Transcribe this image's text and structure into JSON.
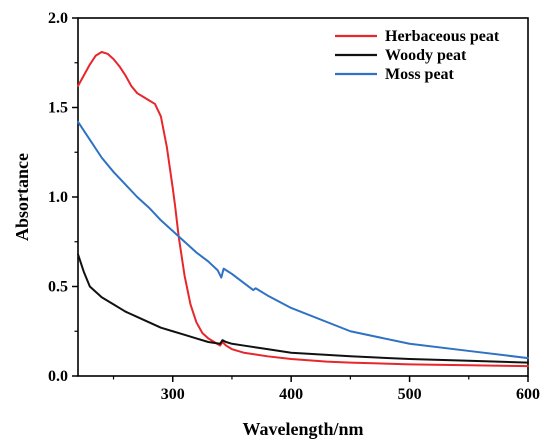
{
  "chart_data": {
    "type": "line",
    "title": "",
    "xlabel": "Wavelength/nm",
    "ylabel": "Absortance",
    "xlim": [
      220,
      600
    ],
    "ylim": [
      0,
      2.0
    ],
    "xticks": [
      "300",
      "400",
      "500",
      "600"
    ],
    "xtick_values": [
      300,
      400,
      500,
      600
    ],
    "yticks": [
      "0.0",
      "0.5",
      "1.0",
      "1.5",
      "2.0"
    ],
    "ytick_values": [
      0.0,
      0.5,
      1.0,
      1.5,
      2.0
    ],
    "grid": false,
    "legend_position": "top-right",
    "series": [
      {
        "name": "Herbaceous peat",
        "color": "#e8262b",
        "x": [
          220,
          225,
          230,
          235,
          240,
          245,
          250,
          255,
          260,
          265,
          270,
          275,
          280,
          285,
          290,
          295,
          300,
          302,
          305,
          310,
          315,
          320,
          325,
          330,
          335,
          340,
          342,
          345,
          350,
          360,
          370,
          380,
          400,
          430,
          450,
          500,
          550,
          600
        ],
        "y": [
          1.62,
          1.68,
          1.74,
          1.79,
          1.81,
          1.8,
          1.77,
          1.73,
          1.68,
          1.62,
          1.58,
          1.56,
          1.54,
          1.52,
          1.45,
          1.28,
          1.05,
          0.95,
          0.78,
          0.56,
          0.4,
          0.3,
          0.24,
          0.21,
          0.19,
          0.17,
          0.19,
          0.17,
          0.15,
          0.13,
          0.12,
          0.11,
          0.095,
          0.08,
          0.075,
          0.065,
          0.06,
          0.055
        ]
      },
      {
        "name": "Woody peat",
        "color": "#111111",
        "x": [
          220,
          225,
          230,
          240,
          250,
          260,
          270,
          280,
          290,
          300,
          310,
          320,
          330,
          340,
          342,
          345,
          350,
          360,
          370,
          380,
          400,
          450,
          500,
          550,
          600
        ],
        "y": [
          0.68,
          0.58,
          0.5,
          0.44,
          0.4,
          0.36,
          0.33,
          0.3,
          0.27,
          0.25,
          0.23,
          0.21,
          0.19,
          0.18,
          0.2,
          0.19,
          0.18,
          0.17,
          0.16,
          0.15,
          0.13,
          0.11,
          0.095,
          0.085,
          0.075
        ]
      },
      {
        "name": "Moss peat",
        "color": "#2f72c4",
        "x": [
          220,
          230,
          240,
          250,
          260,
          270,
          280,
          290,
          300,
          310,
          320,
          330,
          338,
          341,
          343,
          350,
          360,
          368,
          370,
          380,
          400,
          450,
          500,
          550,
          600
        ],
        "y": [
          1.42,
          1.32,
          1.22,
          1.14,
          1.07,
          1.0,
          0.94,
          0.87,
          0.81,
          0.75,
          0.69,
          0.64,
          0.59,
          0.55,
          0.6,
          0.57,
          0.52,
          0.48,
          0.49,
          0.45,
          0.38,
          0.25,
          0.18,
          0.14,
          0.1
        ]
      }
    ]
  }
}
